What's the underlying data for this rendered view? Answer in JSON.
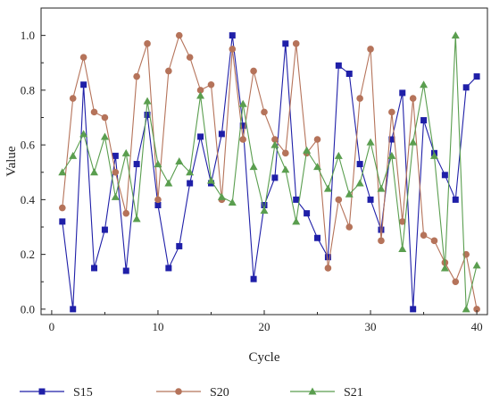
{
  "chart_data": {
    "type": "line",
    "xlabel": "Cycle",
    "ylabel": "Value",
    "xlim": [
      -1,
      41
    ],
    "ylim": [
      -0.02,
      1.1
    ],
    "xticks": [
      0,
      10,
      20,
      30,
      40
    ],
    "yticks": [
      0.0,
      0.2,
      0.4,
      0.6,
      0.8,
      1.0
    ],
    "xtick_labels": [
      "0",
      "10",
      "20",
      "30",
      "40"
    ],
    "ytick_labels": [
      "0.0",
      "0.2",
      "0.4",
      "0.6",
      "0.8",
      "1.0"
    ],
    "grid": false,
    "legend_position": "bottom",
    "x": [
      1,
      2,
      3,
      4,
      5,
      6,
      7,
      8,
      9,
      10,
      11,
      12,
      13,
      14,
      15,
      16,
      17,
      18,
      19,
      20,
      21,
      22,
      23,
      24,
      25,
      26,
      27,
      28,
      29,
      30,
      31,
      32,
      33,
      34,
      35,
      36,
      37,
      38,
      39,
      40
    ],
    "series": [
      {
        "name": "S15",
        "color": "#1f1fa8",
        "marker": "square",
        "values": [
          0.32,
          0.0,
          0.82,
          0.15,
          0.29,
          0.56,
          0.14,
          0.53,
          0.71,
          0.38,
          0.15,
          0.23,
          0.46,
          0.63,
          0.46,
          0.64,
          1.0,
          0.67,
          0.11,
          0.38,
          0.48,
          0.97,
          0.4,
          0.35,
          0.26,
          0.19,
          0.89,
          0.86,
          0.53,
          0.4,
          0.29,
          0.62,
          0.79,
          0.0,
          0.69,
          0.57,
          0.49,
          0.4,
          0.81,
          0.85
        ]
      },
      {
        "name": "S20",
        "color": "#b5735a",
        "marker": "circle",
        "values": [
          0.37,
          0.77,
          0.92,
          0.72,
          0.7,
          0.5,
          0.35,
          0.85,
          0.97,
          0.4,
          0.87,
          1.0,
          0.92,
          0.8,
          0.82,
          0.4,
          0.95,
          0.62,
          0.87,
          0.72,
          0.62,
          0.57,
          0.97,
          0.57,
          0.62,
          0.15,
          0.4,
          0.3,
          0.77,
          0.95,
          0.25,
          0.72,
          0.32,
          0.77,
          0.27,
          0.25,
          0.17,
          0.1,
          0.2,
          0.0
        ]
      },
      {
        "name": "S21",
        "color": "#5a9e4f",
        "marker": "triangle",
        "values": [
          0.5,
          0.56,
          0.64,
          0.5,
          0.63,
          0.41,
          0.57,
          0.33,
          0.76,
          0.53,
          0.46,
          0.54,
          0.5,
          0.78,
          0.47,
          0.41,
          0.39,
          0.75,
          0.52,
          0.36,
          0.6,
          0.51,
          0.32,
          0.58,
          0.52,
          0.44,
          0.56,
          0.42,
          0.46,
          0.61,
          0.44,
          0.56,
          0.22,
          0.61,
          0.82,
          0.56,
          0.15,
          1.0,
          0.0,
          0.16
        ]
      }
    ]
  }
}
